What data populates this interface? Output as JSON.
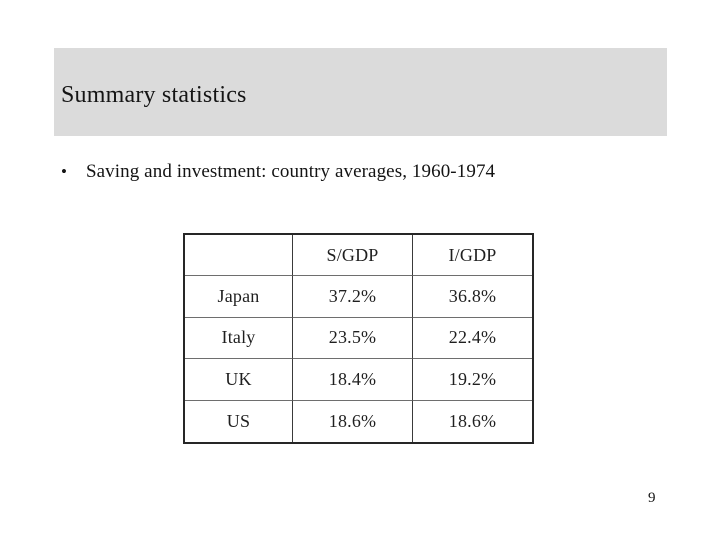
{
  "slide": {
    "title": "Summary statistics",
    "bullet_glyph": "•",
    "bullet": "Saving and investment: country averages, 1960-1974",
    "page_number": "9",
    "table": {
      "headers": [
        "",
        "S/GDP",
        "I/GDP"
      ],
      "rows": [
        [
          "Japan",
          "37.2%",
          "36.8%"
        ],
        [
          "Italy",
          "23.5%",
          "22.4%"
        ],
        [
          "UK",
          "18.4%",
          "19.2%"
        ],
        [
          "US",
          "18.6%",
          "18.6%"
        ]
      ]
    }
  },
  "colors": {
    "title_bar_bg": "#dbdbdb",
    "text": "#141414",
    "table_outer_border": "#262626",
    "table_inner_border": "#3a3a3a",
    "background": "#ffffff"
  }
}
